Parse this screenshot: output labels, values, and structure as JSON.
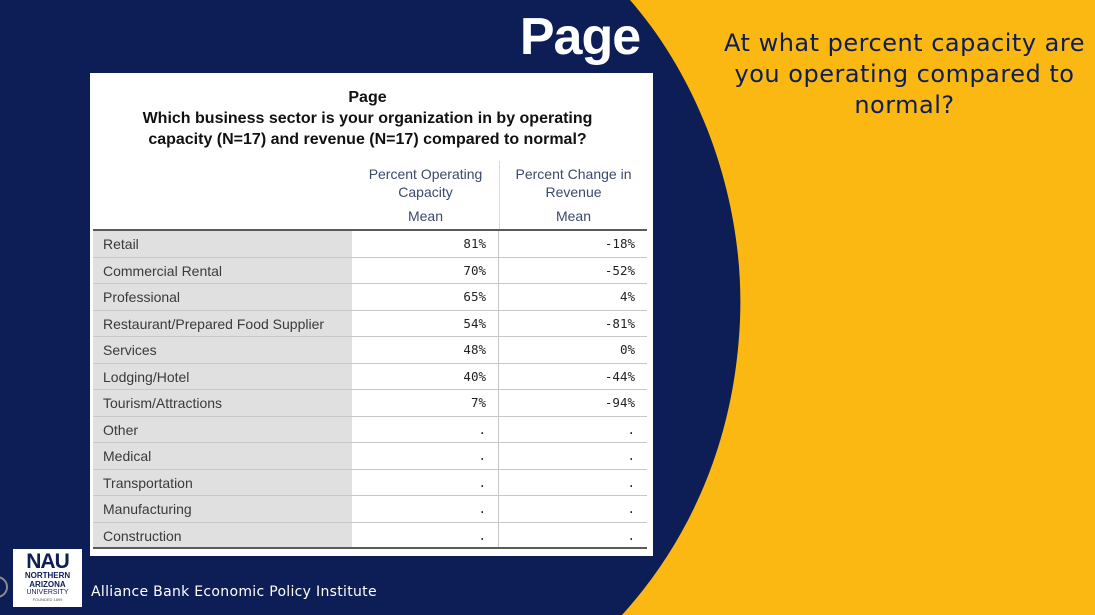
{
  "slide": {
    "title": "Page",
    "side_question": "At what percent capacity are you operating compared to normal?",
    "footer": "Alliance Bank Economic Policy Institute",
    "colors": {
      "navy": "#0d1e56",
      "gold": "#fbb812",
      "white": "#ffffff"
    }
  },
  "logo": {
    "abbrev": "NAU",
    "line1": "NORTHERN",
    "line2": "ARIZONA",
    "line3": "UNIVERSITY",
    "line4": "FOUNDED 1899"
  },
  "table": {
    "heading_line1": "Page",
    "heading_line2": "Which business sector is your organization in by operating",
    "heading_line3": "capacity (N=17) and revenue (N=17) compared to normal?",
    "columns": [
      {
        "line1": "Percent Operating",
        "line2": "Capacity",
        "stat": "Mean"
      },
      {
        "line1": "Percent Change in",
        "line2": "Revenue",
        "stat": "Mean"
      }
    ],
    "rows": [
      {
        "label": "Retail",
        "capacity": "81%",
        "revenue": "-18%"
      },
      {
        "label": "Commercial Rental",
        "capacity": "70%",
        "revenue": "-52%"
      },
      {
        "label": "Professional",
        "capacity": "65%",
        "revenue": "4%"
      },
      {
        "label": "Restaurant/Prepared Food Supplier",
        "capacity": "54%",
        "revenue": "-81%"
      },
      {
        "label": "Services",
        "capacity": "48%",
        "revenue": "0%"
      },
      {
        "label": "Lodging/Hotel",
        "capacity": "40%",
        "revenue": "-44%"
      },
      {
        "label": "Tourism/Attractions",
        "capacity": "7%",
        "revenue": "-94%"
      },
      {
        "label": "Other",
        "capacity": ".",
        "revenue": "."
      },
      {
        "label": "Medical",
        "capacity": ".",
        "revenue": "."
      },
      {
        "label": "Transportation",
        "capacity": ".",
        "revenue": "."
      },
      {
        "label": "Manufacturing",
        "capacity": ".",
        "revenue": "."
      },
      {
        "label": "Construction",
        "capacity": ".",
        "revenue": "."
      }
    ]
  }
}
